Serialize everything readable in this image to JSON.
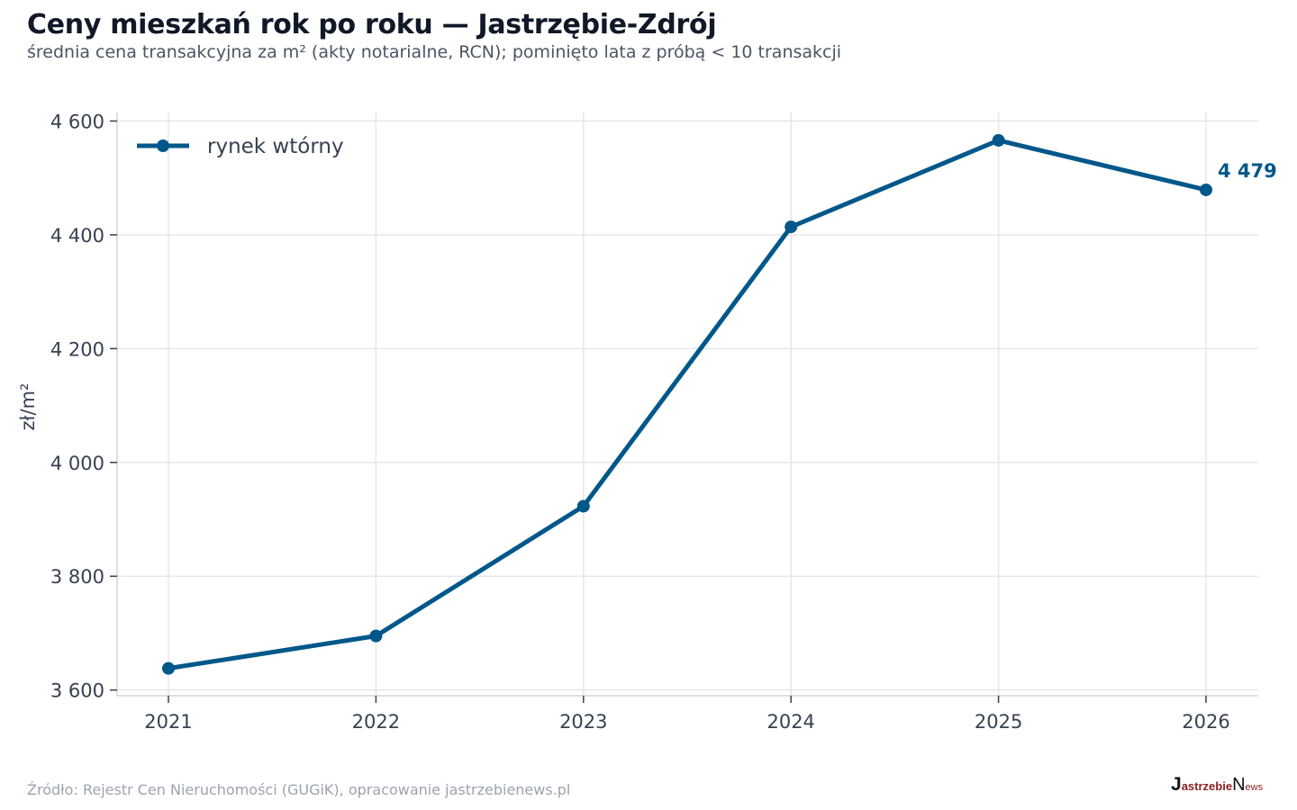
{
  "header": {
    "title": "Ceny mieszkań rok po roku — Jastrzębie-Zdrój",
    "subtitle": "średnia cena transakcyjna za m² (akty notarialne, RCN); pominięto lata z próbą < 10 transakcji"
  },
  "footer": {
    "source": "Źródło: Rejestr Cen Nieruchomości (GUGiK), opracowanie jastrzebienews.pl",
    "brand": {
      "part1": "J",
      "part2": "astrzebie",
      "part3": "N",
      "part4": "ews"
    }
  },
  "colors": {
    "series": "#00578a",
    "grid": "#e5e7eb",
    "text": "#374151"
  },
  "chart_data": {
    "type": "line",
    "ylabel": "zł/m²",
    "x": [
      "2021",
      "2022",
      "2023",
      "2024",
      "2025",
      "2026"
    ],
    "series": [
      {
        "name": "rynek wtórny",
        "values": [
          3638,
          3695,
          3923,
          4414,
          4566,
          4479
        ]
      }
    ],
    "ylim": [
      3590,
      4615
    ],
    "yticks": [
      3600,
      3800,
      4000,
      4200,
      4400,
      4600
    ],
    "ytick_labels": [
      "3 600",
      "3 800",
      "4 000",
      "4 200",
      "4 400",
      "4 600"
    ],
    "end_label": "4 479",
    "grid": true,
    "legend_position": "top-left"
  }
}
